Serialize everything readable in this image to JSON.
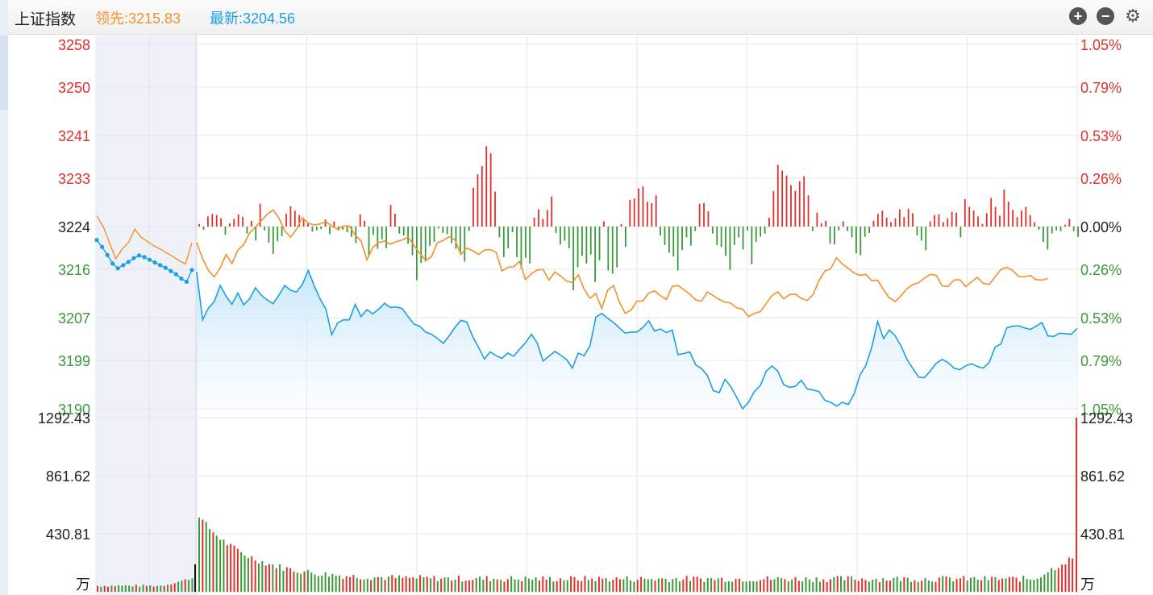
{
  "header": {
    "title": "上证指数",
    "leading_label": "领先:3215.83",
    "latest_label": "最新:3204.56"
  },
  "colors": {
    "up": "#e0302b",
    "down": "#3a9a3a",
    "neutral": "#222222",
    "latest_line": "#1aa0e6",
    "leading_line": "#f5902a",
    "call_auction_band": "#eef2f8"
  },
  "controls": [
    {
      "name": "zoom-in-icon",
      "glyph": "+"
    },
    {
      "name": "zoom-out-icon",
      "glyph": "−"
    },
    {
      "name": "gear-icon",
      "glyph": "⚙"
    }
  ],
  "chart_data": {
    "type": "line",
    "title": "",
    "xlabel": "",
    "ylabel": "",
    "price_axis": {
      "ylim": [
        3190,
        3258
      ],
      "reference_price": 3224,
      "left_ticks": [
        "3258",
        "3250",
        "3241",
        "3233",
        "3224",
        "3216",
        "3207",
        "3199",
        "3190"
      ],
      "left_tick_values": [
        3258,
        3250,
        3241,
        3233,
        3224,
        3216,
        3207,
        3199,
        3190
      ],
      "right_ticks": [
        "1.05%",
        "0.79%",
        "0.53%",
        "0.26%",
        "0.00%",
        "0.26%",
        "0.53%",
        "0.79%",
        "1.05%"
      ]
    },
    "volume_axis": {
      "ylim": [
        0,
        1292.43
      ],
      "ticks": [
        "1292.43",
        "861.62",
        "430.81"
      ],
      "tick_values": [
        1292.43,
        861.62,
        430.81
      ],
      "unit": "万"
    },
    "call_auction": {
      "latest": [
        3221.5,
        3220.2,
        3218.7,
        3217.1,
        3216.2,
        3216.8,
        3217.4,
        3218.1,
        3218.6,
        3218.3,
        3217.8,
        3217.3,
        3216.8,
        3216.3,
        3215.7,
        3215.1,
        3214.3,
        3213.7,
        3215.9
      ],
      "leading": [
        3226,
        3224,
        3221,
        3218,
        3219.8,
        3221,
        3223.5,
        3222,
        3221.2,
        3220.4,
        3219.8,
        3219.1,
        3218.4,
        3217.6,
        3217,
        3221
      ]
    },
    "series": [
      {
        "name": "最新",
        "values": [
          3215.5,
          3206.6,
          3208.8,
          3210.0,
          3213.0,
          3211.0,
          3209.5,
          3211.6,
          3209.4,
          3210.5,
          3212.6,
          3211.2,
          3210.3,
          3209.6,
          3211.2,
          3213.0,
          3212.1,
          3211.8,
          3213.2,
          3215.8,
          3213.0,
          3210.5,
          3208.6,
          3203.8,
          3206.0,
          3206.6,
          3206.6,
          3209.5,
          3207.2,
          3208.5,
          3207.7,
          3208.6,
          3209.7,
          3208.9,
          3209.0,
          3208.7,
          3207.2,
          3205.8,
          3205.4,
          3204.3,
          3203.9,
          3203.1,
          3202.2,
          3203.6,
          3205.2,
          3206.5,
          3206.2,
          3203.5,
          3201.5,
          3199.3,
          3200.6,
          3199.9,
          3199.4,
          3200.4,
          3199.8,
          3201.1,
          3202.3,
          3203.9,
          3202.3,
          3198.9,
          3199.8,
          3200.7,
          3200.0,
          3199.2,
          3197.6,
          3200.4,
          3199.9,
          3201.8,
          3207.1,
          3207.8,
          3206.9,
          3206.1,
          3205.1,
          3204.1,
          3204.3,
          3204.3,
          3205.2,
          3206.4,
          3204.5,
          3204.9,
          3204.2,
          3204.7,
          3200.1,
          3200.3,
          3200.6,
          3198.2,
          3197.5,
          3196.2,
          3193.4,
          3193.0,
          3195.5,
          3194.1,
          3192.1,
          3190.0,
          3191.2,
          3193.2,
          3194.3,
          3197.0,
          3198.0,
          3197.0,
          3194.5,
          3194.0,
          3194.2,
          3195.3,
          3193.7,
          3193.5,
          3193.2,
          3191.6,
          3191.2,
          3190.5,
          3191.2,
          3190.8,
          3192.8,
          3196.3,
          3198.1,
          3201.5,
          3206.3,
          3203.1,
          3204.7,
          3203.6,
          3201.7,
          3199.2,
          3197.5,
          3195.9,
          3195.8,
          3197.1,
          3198.5,
          3199.2,
          3198.6,
          3197.6,
          3197.3,
          3198.0,
          3198.4,
          3197.9,
          3197.6,
          3198.6,
          3201.5,
          3202.1,
          3205.1,
          3205.4,
          3205.5,
          3205.1,
          3204.8,
          3205.4,
          3206.1,
          3203.6,
          3203.5,
          3204.1,
          3204.0,
          3203.9,
          3205.0
        ]
      },
      {
        "name": "领先",
        "values": [
          3221.0,
          3218.0,
          3215.8,
          3214.6,
          3216.3,
          3218.8,
          3217.1,
          3219.6,
          3220.6,
          3222.8,
          3223.9,
          3225.1,
          3226.3,
          3227.1,
          3225.6,
          3223.2,
          3222.0,
          3223.5,
          3225.7,
          3224.6,
          3224.3,
          3224.5,
          3224.9,
          3224.1,
          3223.5,
          3224.1,
          3224.1,
          3222.4,
          3221.3,
          3217.8,
          3220.1,
          3221.0,
          3221.3,
          3220.7,
          3221.2,
          3221.5,
          3222.0,
          3220.5,
          3219.0,
          3217.7,
          3218.4,
          3221.0,
          3221.4,
          3222.1,
          3221.5,
          3218.8,
          3220.0,
          3219.5,
          3218.8,
          3219.6,
          3219.7,
          3219.2,
          3215.7,
          3216.4,
          3216.5,
          3217.5,
          3214.1,
          3215.2,
          3215.9,
          3216.0,
          3214.0,
          3215.5,
          3214.8,
          3213.8,
          3213.6,
          3215.0,
          3212.3,
          3210.6,
          3211.5,
          3208.7,
          3212.1,
          3213.0,
          3209.9,
          3207.8,
          3208.4,
          3210.1,
          3210.1,
          3211.6,
          3212.0,
          3211.1,
          3210.4,
          3212.8,
          3213.0,
          3212.2,
          3211.4,
          3210.3,
          3210.1,
          3211.8,
          3211.1,
          3210.4,
          3209.9,
          3209.7,
          3208.8,
          3208.6,
          3207.2,
          3207.8,
          3208.1,
          3209.6,
          3211.1,
          3211.8,
          3210.5,
          3211.3,
          3211.4,
          3210.6,
          3210.2,
          3211.3,
          3213.9,
          3215.7,
          3216.1,
          3218.2,
          3217.0,
          3216.2,
          3215.3,
          3214.9,
          3215.1,
          3213.9,
          3214.0,
          3212.2,
          3210.7,
          3210.0,
          3211.1,
          3212.4,
          3213.2,
          3213.5,
          3214.4,
          3215.1,
          3214.9,
          3212.9,
          3212.8,
          3214.0,
          3214.1,
          3212.8,
          3213.7,
          3214.5,
          3213.4,
          3213.2,
          3214.6,
          3216.0,
          3216.4,
          3215.8,
          3214.7,
          3214.6,
          3214.9,
          3214.1,
          3214.0,
          3214.3
        ]
      }
    ],
    "diff_bars": [
      0.4,
      -0.5,
      1.6,
      2.0,
      1.8,
      1.3,
      -1.3,
      0.5,
      1.2,
      1.9,
      1.5,
      -1.1,
      0.9,
      -2.2,
      3.6,
      -0.6,
      -2.5,
      -4.3,
      -2.3,
      -1.5,
      2.0,
      3.2,
      2.5,
      1.8,
      1.1,
      0.5,
      -0.8,
      -0.6,
      -0.4,
      1.1,
      -1.2,
      0.8,
      -0.6,
      -0.5,
      -0.9,
      -1.6,
      -2.6,
      1.9,
      0.9,
      -4.7,
      -1.3,
      -3.5,
      -2.0,
      -3.4,
      3.4,
      2.0,
      -1.1,
      -1.4,
      -2.7,
      -4.5,
      -8.4,
      -5.7,
      -5.5,
      -3.0,
      -2.4,
      -0.3,
      -1.0,
      -1.2,
      -2.6,
      -3.5,
      -4.2,
      -5.5,
      -0.7,
      6.1,
      8.2,
      9.5,
      12.6,
      11.5,
      5.5,
      -1.7,
      -4.8,
      -3.4,
      -0.9,
      -4.8,
      -6.6,
      -4.9,
      -5.8,
      1.4,
      2.7,
      1.2,
      2.6,
      4.7,
      -1.0,
      -2.8,
      -2.2,
      -3.4,
      -10.0,
      -6.4,
      -4.6,
      -5.8,
      -4.4,
      -8.7,
      -5.3,
      0.8,
      -6.9,
      -7.4,
      -6.4,
      0.4,
      -3.2,
      4.2,
      4.4,
      6.0,
      6.3,
      3.9,
      3.7,
      4.9,
      -1.4,
      -2.9,
      -4.1,
      -4.7,
      -6.9,
      -3.7,
      -1.7,
      -3.0,
      -0.7,
      3.6,
      3.7,
      2.4,
      -1.1,
      -2.9,
      -3.2,
      -4.6,
      -6.8,
      -2.9,
      -1.7,
      -3.6,
      -0.6,
      -5.9,
      -2.4,
      -1.6,
      -1.1,
      1.4,
      5.6,
      9.7,
      8.8,
      8.0,
      6.5,
      5.6,
      7.1,
      7.9,
      4.9,
      -0.7,
      2.2,
      0.5,
      0.9,
      -2.7,
      -2.8,
      -0.6,
      0.8,
      -0.7,
      -1.7,
      -4.2,
      -4.5,
      -1.6,
      -1.0,
      0.9,
      2.0,
      2.5,
      1.4,
      0.7,
      1.3,
      2.7,
      1.5,
      2.8,
      2.1,
      -1.4,
      -2.2,
      -3.7,
      0.8,
      1.8,
      1.9,
      0.7,
      1.3,
      2.3,
      2.2,
      -1.7,
      4.3,
      3.1,
      2.5,
      1.6,
      0.4,
      2.1,
      4.5,
      3.1,
      1.7,
      5.8,
      3.9,
      2.6,
      1.5,
      2.5,
      3.1,
      1.8,
      0.7,
      -0.5,
      -2.4,
      -3.6,
      -1.1,
      -0.6,
      -0.7,
      0.3,
      1.2,
      -0.7,
      -1.6
    ]
  }
}
